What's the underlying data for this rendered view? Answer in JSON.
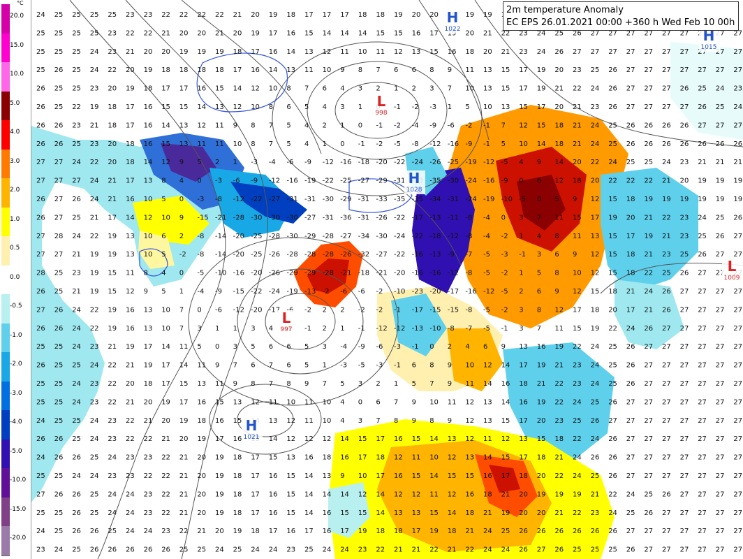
{
  "title": {
    "line1": "2m temperature Anomaly",
    "line2": "EC EPS 26.01.2021 00:00 +360 h Wed Feb 10 00h"
  },
  "legend": {
    "unit": "°C",
    "ticks": [
      "20.0",
      "15.0",
      "10.0",
      "5.0",
      "4.0",
      "3.0",
      "2.0",
      "1.0",
      "0.5",
      "0.0",
      "-0.5",
      "-1.0",
      "-2.0",
      "-3.0",
      "-4.0",
      "-5.0",
      "-10.0",
      "-15.0",
      "-20.0"
    ],
    "colors": [
      "#d600a8",
      "#ff00d0",
      "#ff66e8",
      "#8b0000",
      "#ff0000",
      "#ff7a00",
      "#ffb400",
      "#ffff00",
      "#fff0b0",
      "#ffffff",
      "#b8f0f0",
      "#5fd0ec",
      "#18a8e6",
      "#0070e0",
      "#0040c0",
      "#3010b0",
      "#601098",
      "#804088",
      "#9a7aa8"
    ]
  },
  "pressure_systems": [
    {
      "type": "H",
      "value": "1022",
      "color": "#2255cc"
    },
    {
      "type": "H",
      "value": "1015",
      "color": "#2255cc"
    },
    {
      "type": "L",
      "value": "998",
      "color": "#dd2222"
    },
    {
      "type": "H",
      "value": "1028",
      "color": "#2255cc"
    },
    {
      "type": "L",
      "value": "997",
      "color": "#dd2222"
    },
    {
      "type": "H",
      "value": "1021",
      "color": "#2255cc"
    },
    {
      "type": "L",
      "value": "1009",
      "color": "#dd2222"
    }
  ],
  "grid_values": {
    "note_columns": 40,
    "rows": [
      "24 25 25 25 25 23 23 22 22 22 22 21 20 19 18 17 17 17 18 18 19 20 20 19 19 19 18 17 17 17 17 17 17 17 17 17 17 17 17 17",
      "25 25 25 25 23 22 22 21 20 20 21 20 19 17 16 15 14 14 14 15 15 16 17 19 20 21 22 23 24 25 26 27 27 27 27 27 27 27 27 27",
      "25 25 25 24 23 21 20 20 19 19 19 18 17 16 14 13 12 11 10 11 12 13 15 16 18 20 21 23 24 26 27 27 27 27 27 27 27 27 27 27",
      "25 26 25 24 22 20 19 18 18 18 18 17 16 14 13 11 10 9 8 7 6 6 8 9 11 13 15 17 19 20 23 25 26 27 27 27 27 27 27 27",
      "26 25 25 23 20 19 18 17 17 16 15 14 12 10 8 7 6 4 3 2 1 2 3 7 10 13 15 17 19 21 22 24 26 27 27 27 26 25 24 23",
      "26 25 22 19 18 17 16 15 15 14 13 12 10 8 6 5 4 3 1 0 -1 -2 -3 1 5 10 13 15 17 20 21 23 26 27 27 27 27 26 25 24",
      "26 26 23 21 18 17 16 14 13 12 11 9 8 7 5 4 2 1 0 -1 -2 -4 -9 -6 -2 -1 7 12 15 18 21 24 25 26 26 26 26 27 27 27",
      "26 26 25 23 20 18 16 15 13 11 11 10 8 7 5 4 1 0 -1 -2 -5 -8 -12 -16 -9 -1 5 10 14 18 21 24 25 26 26 26 26 26 26 26",
      "27 27 24 22 20 18 14 12 9 5 2 1 -3 -4 -6 -9 -12 -16 -18 -20 -22 -24 -26 -25 -19 -12 -5 4 9 14 20 22 24 25 25 24 23 21 21 21",
      "27 27 27 24 21 17 13 8 4 0 -3 -6 -9 -12 -16 -19 -22 -25 -27 -29 -31 -33 -35 -30 -24 -16 -9 0 6 12 18 20 22 22 22 21 20 19 19 19",
      "26 27 26 24 21 16 10 5 0 -3 -8 -12 -22 -27 -31 -31 -30 -29 -31 -33 -35 -35 -34 -31 -24 -19 -10 -5 0 5 9 12 15 18 19 19 19 19 19 19",
      "26 27 25 21 17 14 12 10 9 -15 -21 -28 -30 -30 -30 -27 -31 -36 -31 -26 -22 -17 -13 -11 -8 -4 0 3 7 11 15 17 19 20 21 22 23 24 25 26",
      "27 28 24 22 19 13 10 6 2 -8 -14 -20 -25 -28 -30 -29 -28 -27 -34 -30 -24 -22 -18 -12 -8 -4 -2 1 4 8 11 13 15 17 19 21 23 25 26 27",
      "27 27 21 19 19 13 10 5 -2 -8 -14 -20 -25 -26 -28 -28 -28 -26 -32 -27 -22 -16 -13 -9 -7 -5 -3 -1 3 6 9 12 15 18 21 23 25 26 27 27",
      "28 25 23 19 15 11 8 4 0 -5 -10 -16 -20 -26 -29 -29 -28 -21 -18 -21 -20 -16 -16 -12 -8 -5 -2 1 5 8 10 12 15 18 22 25 26 27 27 27",
      "26 25 21 19 15 12 9 5 1 -4 -9 -15 -22 -24 -19 -13 -2 -6 -6 -2 -10 -23 -20 -17 -16 -12 -5 2 6 9 12 15 18 21 24 26 27 27 27 27",
      "27 26 24 22 19 16 13 10 7 0 -6 -12 -20 -17 -6 -2 2 2 -2 -2 -1 -17 -15 -15 -8 -5 -2 3 8 12 17 18 20 17 21 26 27 27 27 27",
      "26 26 24 22 19 16 13 10 7 3 1 1 3 4 4 -1 2 1 -1 -12 -12 -13 -10 -8 -7 -5 -1 3 7 11 15 19 22 24 26 27 27 27 27 27",
      "25 25 24 23 21 19 17 14 11 5 0 3 5 6 6 5 3 -4 -9 -6 -3 -1 0 2 4 6 9 13 16 19 22 24 25 26 27 27 27 27 27 27",
      "26 25 25 24 22 21 19 17 14 11 9 7 6 7 6 5 1 -3 -5 -3 -1 6 8 9 10 12 14 17 19 21 23 24 25 26 27 27 27 27 27 27",
      "25 25 24 23 22 20 18 17 15 13 11 9 8 7 8 9 7 5 3 2 1 5 7 9 11 14 16 18 21 22 23 24 25 26 27 27 27 27 27 27",
      "25 25 24 23 22 21 20 19 17 16 15 13 12 11 10 11 10 4 0 6 7 9 10 11 12 13 14 16 19 22 24 25 26 27 27 27 27 27 27 27",
      "24 25 25 24 23 22 21 20 19 18 16 15 14 13 12 11 10 4 3 7 8 9 8 9 12 13 15 17 20 23 25 26 27 27 27 27 27 27 27 27",
      "26 26 25 24 23 22 22 21 20 19 17 16 15 14 12 12 12 14 15 17 16 15 14 13 12 11 12 13 15 18 22 24 26 27 27 27 27 27 27 27",
      "24 26 26 25 24 23 23 22 21 20 19 18 17 15 13 16 18 16 17 18 12 11 10 12 13 14 15 17 18 21 24 26 26 27 27 27 27 27 27 27",
      "25 25 24 24 23 23 22 22 21 20 19 18 17 16 15 14 13 9 10 17 16 15 14 15 15 16 17 18 20 22 24 25 26 27 27 27 27 27 27 27",
      "27 26 26 25 24 24 23 22 21 20 19 18 17 16 15 14 14 14 12 14 12 12 11 12 16 18 21 20 19 19 19 21 22 24 25 26 27 27 27 27",
      "25 25 26 25 24 24 23 22 21 20 19 18 17 16 15 14 16 15 15 14 13 13 15 14 18 21 19 20 20 21 22 23 24 25 26 27 27 27 27 27",
      "24 25 26 26 25 24 24 23 22 21 20 19 18 17 16 17 16 17 19 18 18 17 19 18 21 24 25 26 26 26 26 26 26 27 27 27 27 27 27 27",
      "23 24 25 26 26 26 26 26 25 25 24 25 24 24 23 25 24 24 23 22 21 21 22 21 22 24 24 26 27 26 25 25 25 26 27 27 27 27 27 27"
    ]
  }
}
